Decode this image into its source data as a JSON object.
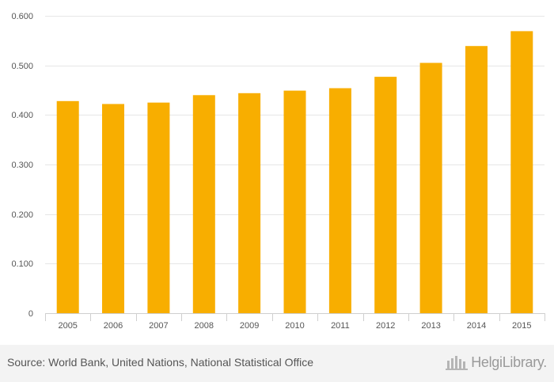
{
  "chart_data": {
    "type": "bar",
    "title": "",
    "xlabel": "",
    "ylabel": "",
    "categories": [
      "2005",
      "2006",
      "2007",
      "2008",
      "2009",
      "2010",
      "2011",
      "2012",
      "2013",
      "2014",
      "2015"
    ],
    "values": [
      0.428,
      0.422,
      0.425,
      0.44,
      0.444,
      0.449,
      0.454,
      0.477,
      0.505,
      0.539,
      0.569
    ],
    "ylim": [
      0,
      0.6
    ],
    "yticks": [
      0,
      0.1,
      0.2,
      0.3,
      0.4,
      0.5,
      0.6
    ],
    "ytick_labels": [
      "0",
      "0.100",
      "0.200",
      "0.300",
      "0.400",
      "0.500",
      "0.600"
    ],
    "grid": true,
    "bar_color": "#f8ae00"
  },
  "footer": {
    "source": "Source: World Bank, United Nations, National Statistical Office",
    "brand": "HelgiLibrary."
  },
  "colors": {
    "bar": "#f8ae00",
    "grid": "#e6e6e6",
    "footer_bg": "#f3f3f3"
  }
}
